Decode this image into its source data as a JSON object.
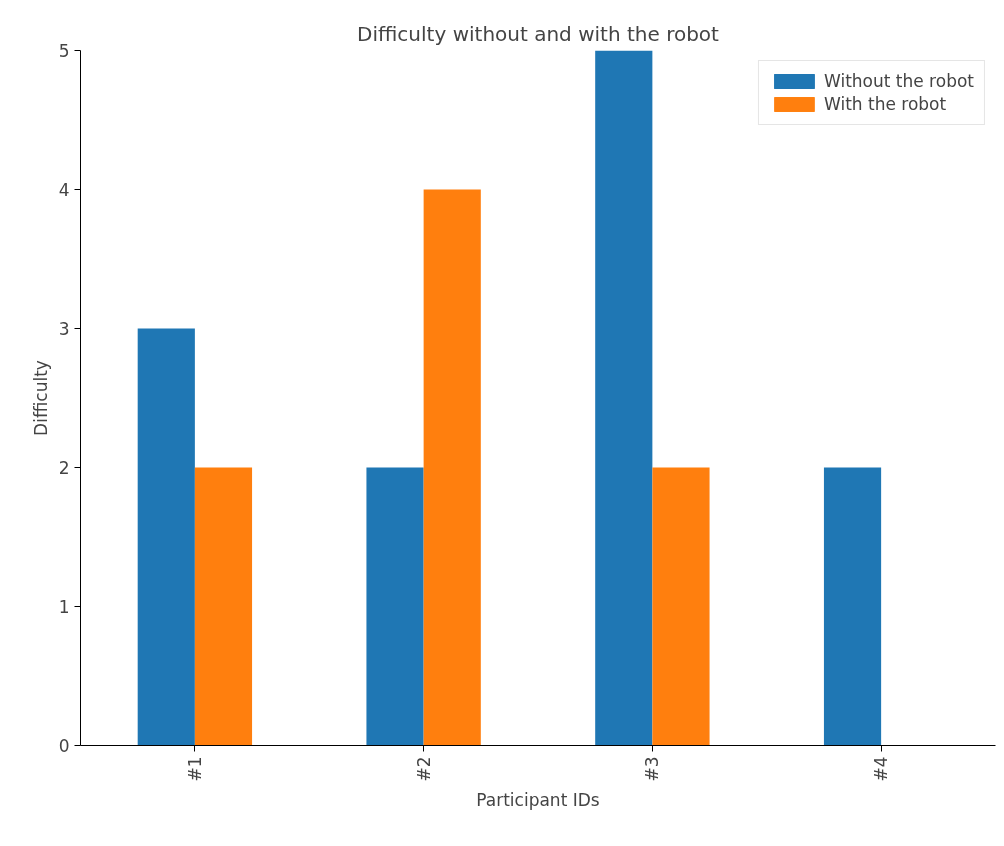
{
  "chart_data": {
    "type": "bar",
    "title": "Difficulty without and with the robot",
    "xlabel": "Participant IDs",
    "ylabel": "Difficulty",
    "categories": [
      "#1",
      "#2",
      "#3",
      "#4"
    ],
    "series": [
      {
        "name": "Without the robot",
        "color": "#1f77b4",
        "values": [
          3,
          2,
          5,
          2
        ]
      },
      {
        "name": "With the robot",
        "color": "#ff7f0e",
        "values": [
          2,
          4,
          2,
          null
        ]
      }
    ],
    "ylim": [
      0,
      5
    ],
    "yticks": [
      0,
      1,
      2,
      3,
      4,
      5
    ],
    "grid": false,
    "legend": "top right"
  }
}
